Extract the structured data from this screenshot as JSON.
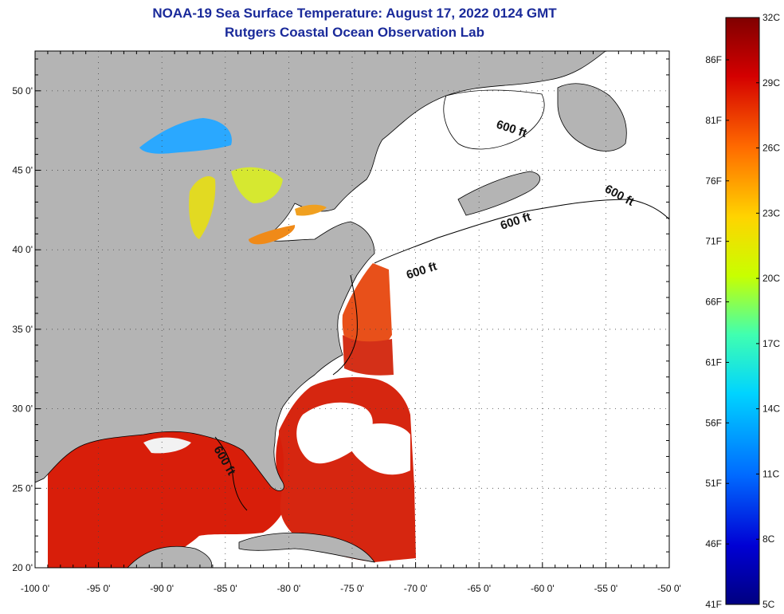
{
  "title": {
    "line1": "NOAA-19 Sea Surface Temperature:  August 17, 2022 0124 GMT",
    "line2": "Rutgers Coastal Ocean Observation Lab"
  },
  "map": {
    "lon_range": [
      -100,
      -50
    ],
    "lat_range": [
      20,
      52.5
    ],
    "lat_ticks": [
      "50 0'",
      "45 0'",
      "40 0'",
      "35 0'",
      "30 0'",
      "25 0'",
      "20 0'"
    ],
    "lon_ticks": [
      "-100 0'",
      "-95 0'",
      "-90 0'",
      "-85 0'",
      "-80 0'",
      "-75 0'",
      "-70 0'",
      "-65 0'",
      "-60 0'",
      "-55 0'",
      "-50 0'"
    ],
    "depth_contour_label": "600 ft",
    "colors": {
      "land": "#b4b4b4",
      "cloud": "#ffffff",
      "warm_water": "#d81e0a",
      "lake": "#e6e028"
    }
  },
  "colorbar": {
    "celsius_ticks": [
      "32C",
      "29C",
      "26C",
      "23C",
      "20C",
      "17C",
      "14C",
      "11C",
      "8C",
      "5C"
    ],
    "fahrenheit_ticks": [
      "86F",
      "81F",
      "76F",
      "71F",
      "66F",
      "61F",
      "56F",
      "51F",
      "46F",
      "41F"
    ],
    "colors": [
      "#800000",
      "#d40000",
      "#ff6a00",
      "#ffd400",
      "#c8ff00",
      "#40ffb0",
      "#00d4ff",
      "#006aff",
      "#0000d4",
      "#000080"
    ]
  }
}
